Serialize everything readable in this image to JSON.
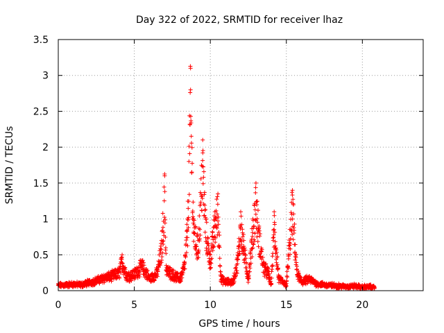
{
  "chart_data": {
    "type": "scatter",
    "title": "Day 322 of 2022, SRMTID for receiver lhaz",
    "xlabel": "GPS time / hours",
    "ylabel": "SRMTID / TECUs",
    "xlim": [
      0,
      24
    ],
    "ylim": [
      0,
      3.5
    ],
    "grid": true,
    "x_ticks": [
      0,
      5,
      10,
      15,
      20
    ],
    "y_ticks": [
      0,
      0.5,
      1,
      1.5,
      2,
      2.5,
      3,
      3.5
    ],
    "x_tick_labels": [
      "0",
      "5",
      "10",
      "15",
      "20"
    ],
    "y_tick_labels": [
      "0",
      "0.5",
      "1",
      "1.5",
      "2",
      "2.5",
      "3",
      "3.5"
    ],
    "marker": "+",
    "series": [
      {
        "name": "lhaz",
        "color": "#ff0000",
        "profile": [
          [
            0.0,
            0.09
          ],
          [
            0.5,
            0.1
          ],
          [
            1.0,
            0.11
          ],
          [
            1.5,
            0.1
          ],
          [
            2.0,
            0.14
          ],
          [
            2.5,
            0.17
          ],
          [
            3.0,
            0.22
          ],
          [
            3.5,
            0.25
          ],
          [
            4.0,
            0.3
          ],
          [
            4.2,
            0.5
          ],
          [
            4.5,
            0.25
          ],
          [
            5.0,
            0.28
          ],
          [
            5.5,
            0.42
          ],
          [
            5.8,
            0.3
          ],
          [
            6.0,
            0.2
          ],
          [
            6.5,
            0.3
          ],
          [
            6.8,
            0.7
          ],
          [
            7.0,
            1.6
          ],
          [
            7.1,
            0.35
          ],
          [
            7.5,
            0.28
          ],
          [
            8.0,
            0.2
          ],
          [
            8.3,
            0.4
          ],
          [
            8.5,
            1.0
          ],
          [
            8.7,
            3.1
          ],
          [
            8.9,
            1.0
          ],
          [
            9.2,
            0.7
          ],
          [
            9.5,
            2.1
          ],
          [
            9.7,
            1.0
          ],
          [
            10.0,
            0.5
          ],
          [
            10.3,
            1.1
          ],
          [
            10.5,
            1.35
          ],
          [
            10.7,
            0.2
          ],
          [
            11.0,
            0.15
          ],
          [
            11.5,
            0.15
          ],
          [
            11.8,
            0.5
          ],
          [
            12.0,
            1.1
          ],
          [
            12.2,
            0.7
          ],
          [
            12.5,
            0.2
          ],
          [
            12.8,
            1.0
          ],
          [
            13.0,
            1.5
          ],
          [
            13.2,
            0.9
          ],
          [
            13.5,
            0.4
          ],
          [
            13.8,
            0.3
          ],
          [
            14.0,
            0.1
          ],
          [
            14.2,
            1.1
          ],
          [
            14.5,
            0.2
          ],
          [
            15.0,
            0.1
          ],
          [
            15.4,
            1.4
          ],
          [
            15.7,
            0.3
          ],
          [
            16.0,
            0.15
          ],
          [
            16.5,
            0.2
          ],
          [
            17.0,
            0.12
          ],
          [
            17.5,
            0.1
          ],
          [
            18.0,
            0.09
          ],
          [
            18.5,
            0.08
          ],
          [
            19.0,
            0.07
          ],
          [
            19.5,
            0.08
          ],
          [
            20.0,
            0.06
          ],
          [
            20.5,
            0.07
          ],
          [
            20.8,
            0.05
          ]
        ]
      }
    ]
  }
}
